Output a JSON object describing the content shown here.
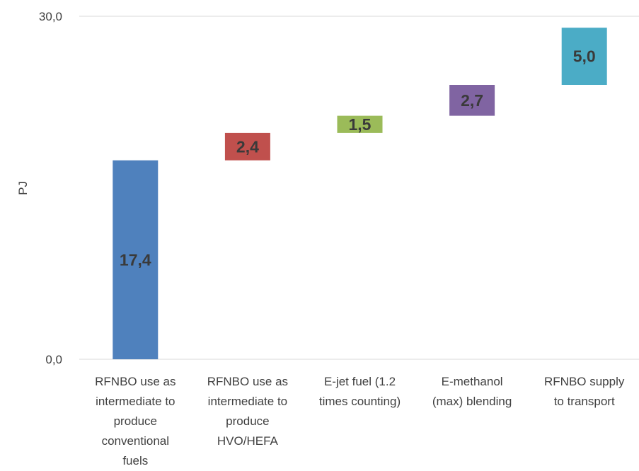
{
  "chart_data": {
    "type": "bar",
    "subtype": "waterfall",
    "ylabel": "PJ",
    "ylim": [
      0,
      30
    ],
    "y_tick_labels": [
      "0,0",
      "30,0"
    ],
    "grid": true,
    "legend": "none",
    "categories": [
      [
        "RFNBO use as",
        "intermediate to",
        "produce",
        "conventional",
        "fuels"
      ],
      [
        "RFNBO use as",
        "intermediate to",
        "produce",
        "HVO/HEFA"
      ],
      [
        "E-jet fuel (1.2",
        "times counting)"
      ],
      [
        "E-methanol",
        "(max) blending"
      ],
      [
        "RFNBO supply",
        "to  transport"
      ]
    ],
    "bars": [
      {
        "base": 0.0,
        "value": 17.4,
        "label": "17,4",
        "color": "#4F81BD"
      },
      {
        "base": 17.4,
        "value": 2.4,
        "label": "2,4",
        "color": "#C0504D"
      },
      {
        "base": 19.8,
        "value": 1.5,
        "label": "1,5",
        "color": "#9BBB59"
      },
      {
        "base": 21.3,
        "value": 2.7,
        "label": "2,7",
        "color": "#8064A2"
      },
      {
        "base": 24.0,
        "value": 5.0,
        "label": "5,0",
        "color": "#4BACC6"
      }
    ],
    "label_color": "#3a3a3a",
    "axis_text_color": "#404040",
    "gridline_color": "#d9d9d9"
  }
}
